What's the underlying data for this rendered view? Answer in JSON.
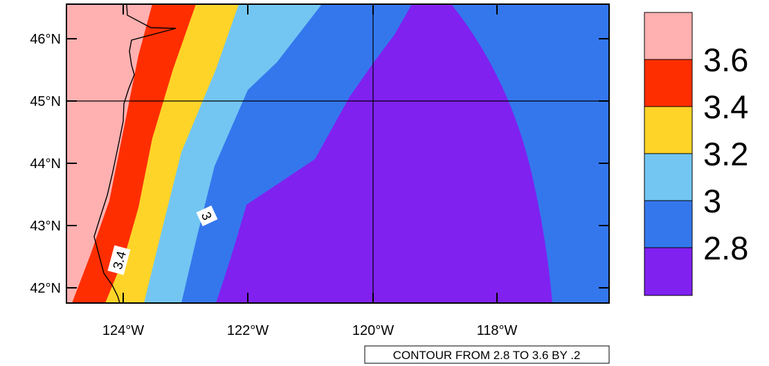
{
  "colors": {
    "band_lt_2_8": "#8021f0",
    "band_2_8_3_0": "#3477ed",
    "band_3_0_3_2": "#73c6f2",
    "band_3_2_3_4": "#ffd429",
    "band_3_4_3_6": "#ff2e00",
    "band_gt_3_6": "#ffb0b0",
    "coastline": "#000000",
    "grid": "#000000"
  },
  "map": {
    "lon_range": [
      -124.9,
      -116.4
    ],
    "lat_range": [
      41.75,
      46.55
    ],
    "gridlines": {
      "lon": -120,
      "lat": 45
    }
  },
  "axes": {
    "y_ticks": [
      {
        "value": 46,
        "label": "46°N"
      },
      {
        "value": 45,
        "label": "45°N"
      },
      {
        "value": 44,
        "label": "44°N"
      },
      {
        "value": 43,
        "label": "43°N"
      },
      {
        "value": 42,
        "label": "42°N"
      }
    ],
    "x_ticks": [
      {
        "value": -124,
        "label": "124°W"
      },
      {
        "value": -122,
        "label": "122°W"
      },
      {
        "value": -120,
        "label": "120°W"
      },
      {
        "value": -118,
        "label": "118°W"
      }
    ]
  },
  "contour_labels": [
    {
      "text": "3.4"
    },
    {
      "text": "3"
    }
  ],
  "legend": {
    "entries": [
      "3.6",
      "3.4",
      "3.2",
      "3",
      "2.8"
    ]
  },
  "info_label": "CONTOUR FROM 2.8 TO 3.6 BY .2"
}
